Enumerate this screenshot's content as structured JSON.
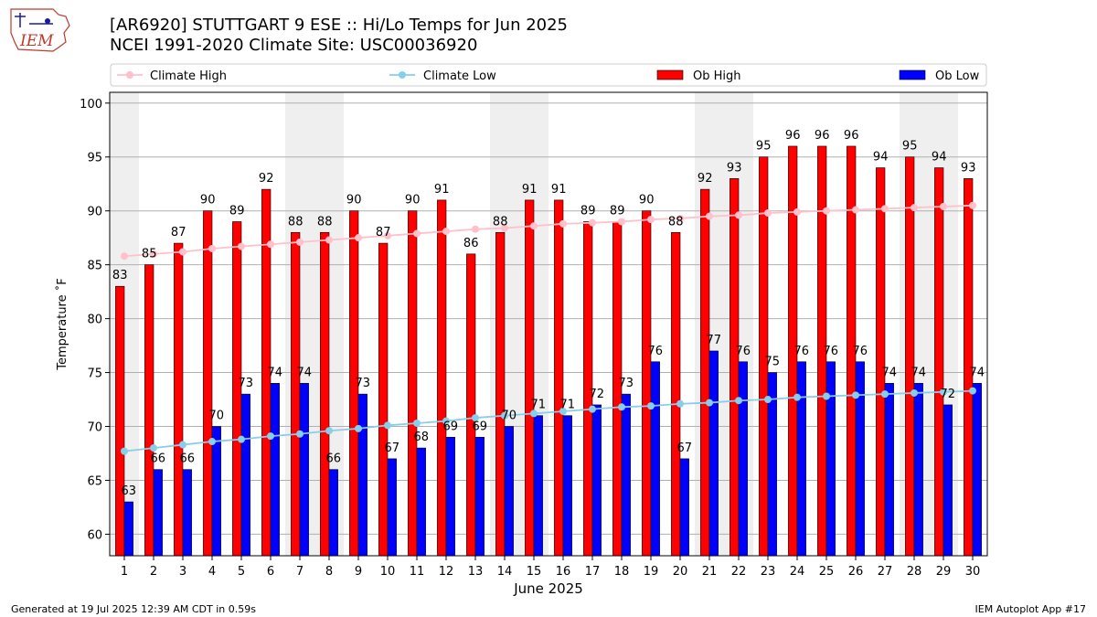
{
  "header": {
    "logo_text": "IEM",
    "title_line1": "[AR6920] STUTTGART 9 ESE :: Hi/Lo Temps for Jun 2025",
    "title_line2": "NCEI 1991-2020 Climate Site: USC00036920"
  },
  "footer": {
    "left": "Generated at 19 Jul 2025 12:39 AM CDT in 0.59s",
    "right": "IEM Autoplot App #17"
  },
  "colors": {
    "ob_high": "#ff0000",
    "ob_low": "#0000ff",
    "climate_high": "#ffc0cb",
    "climate_low": "#87ceeb",
    "weekend_shade": "#efefef",
    "grid": "#b0b0b0"
  },
  "chart_data": {
    "type": "bar",
    "xlabel": "June 2025",
    "ylabel": "Temperature ˚F",
    "ylim": [
      58,
      101
    ],
    "yticks": [
      60,
      65,
      70,
      75,
      80,
      85,
      90,
      95,
      100
    ],
    "grid": "horizontal",
    "legend_position": "top",
    "weekend_days": [
      1,
      7,
      8,
      14,
      15,
      21,
      22,
      28,
      29
    ],
    "categories": [
      "1",
      "2",
      "3",
      "4",
      "5",
      "6",
      "7",
      "8",
      "9",
      "10",
      "11",
      "12",
      "13",
      "14",
      "15",
      "16",
      "17",
      "18",
      "19",
      "20",
      "21",
      "22",
      "23",
      "24",
      "25",
      "26",
      "27",
      "28",
      "29",
      "30"
    ],
    "series": [
      {
        "name": "Climate High",
        "kind": "line",
        "values": [
          85.8,
          86.0,
          86.2,
          86.5,
          86.7,
          86.9,
          87.1,
          87.3,
          87.5,
          87.7,
          87.9,
          88.1,
          88.3,
          88.4,
          88.6,
          88.8,
          88.9,
          89.0,
          89.2,
          89.3,
          89.5,
          89.6,
          89.8,
          89.9,
          90.0,
          90.1,
          90.2,
          90.3,
          90.4,
          90.5
        ]
      },
      {
        "name": "Climate Low",
        "kind": "line",
        "values": [
          67.7,
          68.0,
          68.3,
          68.6,
          68.8,
          69.1,
          69.3,
          69.6,
          69.8,
          70.1,
          70.3,
          70.5,
          70.8,
          71.0,
          71.2,
          71.4,
          71.6,
          71.8,
          71.9,
          72.1,
          72.2,
          72.4,
          72.5,
          72.7,
          72.8,
          72.9,
          73.0,
          73.1,
          73.2,
          73.3
        ]
      },
      {
        "name": "Ob High",
        "kind": "bar",
        "values": [
          83,
          85,
          87,
          90,
          89,
          92,
          88,
          88,
          90,
          87,
          90,
          91,
          86,
          88,
          91,
          91,
          89,
          89,
          90,
          88,
          92,
          93,
          95,
          96,
          96,
          96,
          94,
          95,
          94,
          93
        ]
      },
      {
        "name": "Ob Low",
        "kind": "bar",
        "values": [
          63,
          66,
          66,
          70,
          73,
          74,
          74,
          66,
          73,
          67,
          68,
          69,
          69,
          70,
          71,
          71,
          72,
          73,
          76,
          67,
          77,
          76,
          75,
          76,
          76,
          76,
          74,
          74,
          72,
          74
        ]
      }
    ]
  }
}
